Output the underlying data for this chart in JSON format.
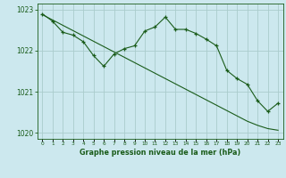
{
  "xlabel": "Graphe pression niveau de la mer (hPa)",
  "background_color": "#cce8ee",
  "grid_color": "#aacccc",
  "line_color": "#1a5c1a",
  "hours": [
    0,
    1,
    2,
    3,
    4,
    5,
    6,
    7,
    8,
    9,
    10,
    11,
    12,
    13,
    14,
    15,
    16,
    17,
    18,
    19,
    20,
    21,
    22,
    23
  ],
  "pressure_actual": [
    1022.9,
    1022.72,
    1022.45,
    1022.38,
    1022.22,
    1021.88,
    1021.62,
    1021.92,
    1022.05,
    1022.12,
    1022.48,
    1022.58,
    1022.82,
    1022.52,
    1022.52,
    1022.42,
    1022.28,
    1022.12,
    1021.52,
    1021.32,
    1021.18,
    1020.78,
    1020.52,
    1020.72
  ],
  "pressure_trend": [
    1022.88,
    1022.75,
    1022.62,
    1022.49,
    1022.36,
    1022.23,
    1022.1,
    1021.97,
    1021.84,
    1021.71,
    1021.58,
    1021.45,
    1021.32,
    1021.19,
    1021.06,
    1020.93,
    1020.8,
    1020.67,
    1020.54,
    1020.41,
    1020.28,
    1020.18,
    1020.1,
    1020.06
  ],
  "ylim": [
    1019.85,
    1023.15
  ],
  "yticks": [
    1020,
    1021,
    1022,
    1023
  ],
  "xlim": [
    -0.5,
    23.5
  ],
  "xticks": [
    0,
    1,
    2,
    3,
    4,
    5,
    6,
    7,
    8,
    9,
    10,
    11,
    12,
    13,
    14,
    15,
    16,
    17,
    18,
    19,
    20,
    21,
    22,
    23
  ],
  "figwidth": 3.2,
  "figheight": 2.0,
  "dpi": 100
}
